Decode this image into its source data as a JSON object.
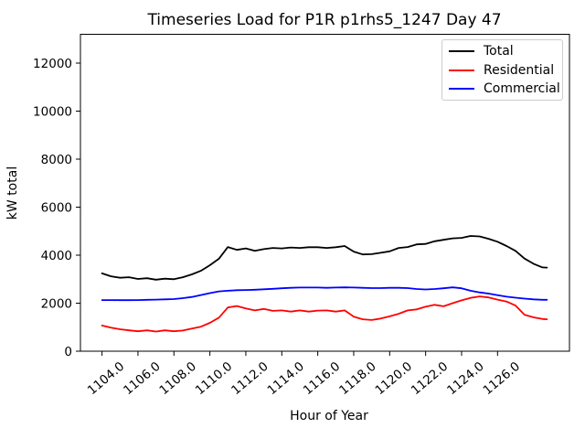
{
  "chart_data": {
    "type": "line",
    "title": "Timeseries Load for P1R p1rhs5_1247  Day 47",
    "xlabel": "Hour of Year",
    "ylabel": "kW total",
    "grid": false,
    "legend_position": "upper right",
    "xlim": [
      1102.8,
      1130.0
    ],
    "ylim": [
      0,
      13200
    ],
    "xticks": {
      "values": [
        1104,
        1106,
        1108,
        1110,
        1112,
        1114,
        1116,
        1118,
        1120,
        1122,
        1124,
        1126
      ],
      "labels": [
        "1104.0",
        "1106.0",
        "1108.0",
        "1110.0",
        "1112.0",
        "1114.0",
        "1116.0",
        "1118.0",
        "1120.0",
        "1122.0",
        "1124.0",
        "1126.0"
      ]
    },
    "yticks": {
      "values": [
        0,
        2000,
        4000,
        6000,
        8000,
        10000,
        12000
      ],
      "labels": [
        "0",
        "2000",
        "4000",
        "6000",
        "8000",
        "10000",
        "12000"
      ]
    },
    "x": [
      1104.0,
      1104.5,
      1105.0,
      1105.5,
      1106.0,
      1106.5,
      1107.0,
      1107.5,
      1108.0,
      1108.5,
      1109.0,
      1109.5,
      1110.0,
      1110.5,
      1111.0,
      1111.5,
      1112.0,
      1112.5,
      1113.0,
      1113.5,
      1114.0,
      1114.5,
      1115.0,
      1115.5,
      1116.0,
      1116.5,
      1117.0,
      1117.5,
      1118.0,
      1118.5,
      1119.0,
      1119.5,
      1120.0,
      1120.5,
      1121.0,
      1121.5,
      1122.0,
      1122.5,
      1123.0,
      1123.5,
      1124.0,
      1124.5,
      1125.0,
      1125.5,
      1126.0,
      1126.5,
      1127.0,
      1127.5,
      1128.0,
      1128.5,
      1128.75
    ],
    "series": [
      {
        "name": "Total",
        "color": "#000000",
        "values": [
          3240,
          3120,
          3060,
          3080,
          3010,
          3040,
          2980,
          3020,
          3000,
          3080,
          3200,
          3350,
          3580,
          3850,
          4340,
          4220,
          4280,
          4180,
          4250,
          4300,
          4280,
          4320,
          4300,
          4330,
          4330,
          4300,
          4330,
          4380,
          4150,
          4030,
          4040,
          4100,
          4160,
          4300,
          4340,
          4450,
          4470,
          4580,
          4640,
          4700,
          4720,
          4800,
          4780,
          4680,
          4560,
          4380,
          4180,
          3860,
          3640,
          3490,
          3480
        ]
      },
      {
        "name": "Residential",
        "color": "#ff0000",
        "values": [
          1070,
          980,
          915,
          870,
          830,
          870,
          820,
          870,
          830,
          860,
          940,
          1020,
          1180,
          1400,
          1820,
          1880,
          1780,
          1700,
          1760,
          1680,
          1700,
          1650,
          1700,
          1650,
          1690,
          1700,
          1650,
          1700,
          1440,
          1330,
          1300,
          1360,
          1450,
          1560,
          1700,
          1740,
          1850,
          1930,
          1870,
          2000,
          2120,
          2220,
          2280,
          2240,
          2150,
          2070,
          1900,
          1520,
          1410,
          1340,
          1330
        ]
      },
      {
        "name": "Commercial",
        "color": "#0000ff",
        "values": [
          2130,
          2130,
          2125,
          2125,
          2130,
          2140,
          2150,
          2160,
          2170,
          2210,
          2260,
          2340,
          2420,
          2490,
          2520,
          2540,
          2550,
          2560,
          2580,
          2600,
          2620,
          2640,
          2650,
          2650,
          2650,
          2640,
          2650,
          2660,
          2650,
          2640,
          2630,
          2630,
          2640,
          2640,
          2630,
          2590,
          2570,
          2590,
          2620,
          2660,
          2620,
          2520,
          2450,
          2400,
          2330,
          2270,
          2230,
          2190,
          2160,
          2140,
          2140
        ]
      }
    ]
  }
}
